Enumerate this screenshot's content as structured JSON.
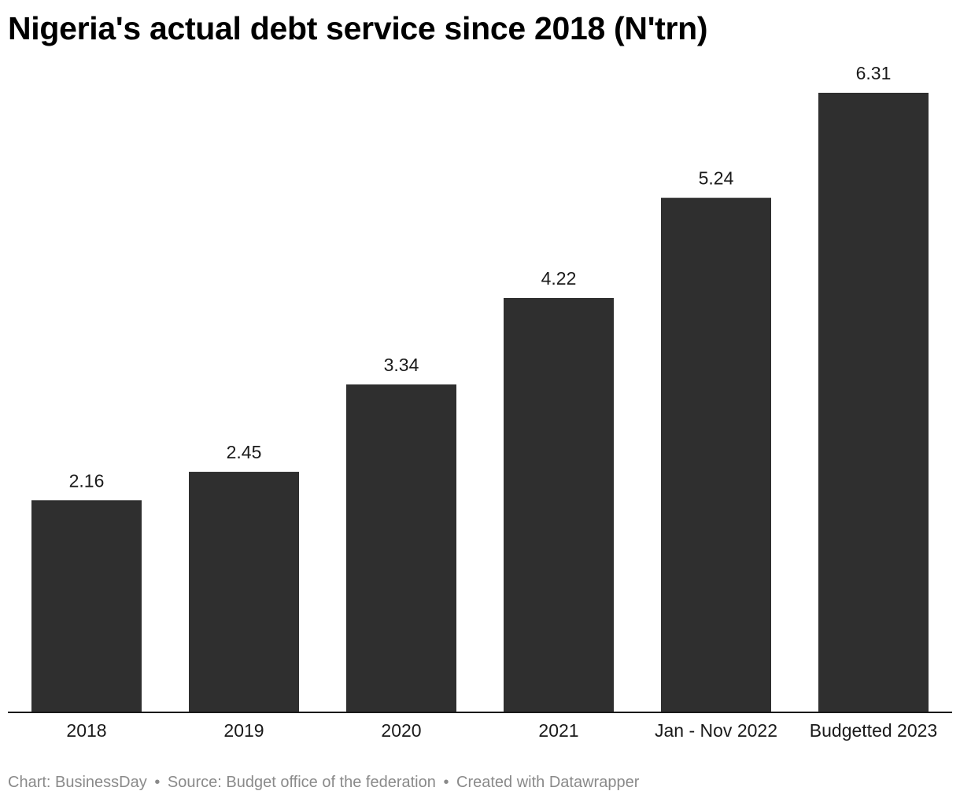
{
  "chart_data": {
    "type": "bar",
    "title": "Nigeria's actual debt service since 2018 (N'trn)",
    "categories": [
      "2018",
      "2019",
      "2020",
      "2021",
      "Jan - Nov 2022",
      "Budgetted 2023"
    ],
    "values": [
      2.16,
      2.45,
      3.34,
      4.22,
      5.24,
      6.31
    ],
    "value_labels": [
      "2.16",
      "2.45",
      "3.34",
      "4.22",
      "5.24",
      "6.31"
    ],
    "xlabel": "",
    "ylabel": "",
    "ylim": [
      0,
      6.31
    ],
    "grid": false,
    "legend": "none",
    "bar_color": "#2f2f2f"
  },
  "footer": {
    "byline": "Chart: BusinessDay",
    "source": "Source: Budget office of the federation",
    "credit": "Created with Datawrapper",
    "separator": "•"
  }
}
